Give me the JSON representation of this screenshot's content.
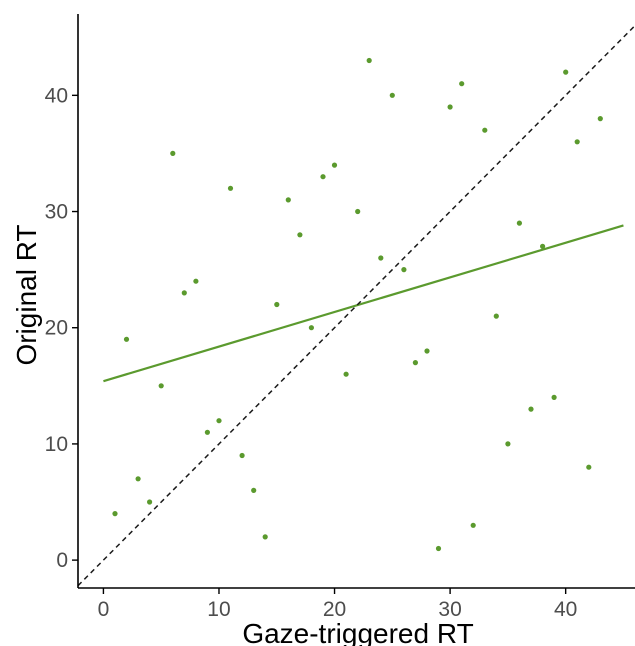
{
  "chart_data": {
    "type": "scatter",
    "title": "",
    "xlabel": "Gaze-triggered RT",
    "ylabel": "Original RT",
    "xlim": [
      -2.2,
      46
    ],
    "ylim": [
      -2.4,
      47
    ],
    "x_ticks": [
      0,
      10,
      20,
      30,
      40
    ],
    "y_ticks": [
      0,
      10,
      20,
      30,
      40
    ],
    "grid": false,
    "legend": "none",
    "colors": {
      "points": "#5b9a2e",
      "fit_line": "#5b9a2e",
      "identity_line": "#1a1a1a",
      "axis": "#000000"
    },
    "points": [
      {
        "x": 1,
        "y": 4
      },
      {
        "x": 2,
        "y": 19
      },
      {
        "x": 3,
        "y": 7
      },
      {
        "x": 4,
        "y": 5
      },
      {
        "x": 5,
        "y": 15
      },
      {
        "x": 6,
        "y": 35
      },
      {
        "x": 7,
        "y": 23
      },
      {
        "x": 8,
        "y": 24
      },
      {
        "x": 9,
        "y": 11
      },
      {
        "x": 10,
        "y": 12
      },
      {
        "x": 11,
        "y": 32
      },
      {
        "x": 12,
        "y": 9
      },
      {
        "x": 13,
        "y": 6
      },
      {
        "x": 14,
        "y": 2
      },
      {
        "x": 15,
        "y": 22
      },
      {
        "x": 16,
        "y": 31
      },
      {
        "x": 17,
        "y": 28
      },
      {
        "x": 18,
        "y": 20
      },
      {
        "x": 19,
        "y": 33
      },
      {
        "x": 20,
        "y": 34
      },
      {
        "x": 21,
        "y": 16
      },
      {
        "x": 22,
        "y": 30
      },
      {
        "x": 23,
        "y": 43
      },
      {
        "x": 24,
        "y": 26
      },
      {
        "x": 25,
        "y": 40
      },
      {
        "x": 26,
        "y": 25
      },
      {
        "x": 27,
        "y": 17
      },
      {
        "x": 28,
        "y": 18
      },
      {
        "x": 29,
        "y": 1
      },
      {
        "x": 30,
        "y": 39
      },
      {
        "x": 31,
        "y": 41
      },
      {
        "x": 32,
        "y": 3
      },
      {
        "x": 33,
        "y": 37
      },
      {
        "x": 34,
        "y": 21
      },
      {
        "x": 35,
        "y": 10
      },
      {
        "x": 36,
        "y": 29
      },
      {
        "x": 37,
        "y": 13
      },
      {
        "x": 38,
        "y": 27
      },
      {
        "x": 39,
        "y": 14
      },
      {
        "x": 40,
        "y": 42
      },
      {
        "x": 41,
        "y": 36
      },
      {
        "x": 42,
        "y": 8
      },
      {
        "x": 43,
        "y": 38
      }
    ],
    "fit_line": {
      "x": [
        0,
        45
      ],
      "y": [
        15.4,
        28.8
      ]
    },
    "identity_line": {
      "x": [
        -2.2,
        46
      ],
      "y": [
        -2.2,
        46
      ]
    }
  }
}
